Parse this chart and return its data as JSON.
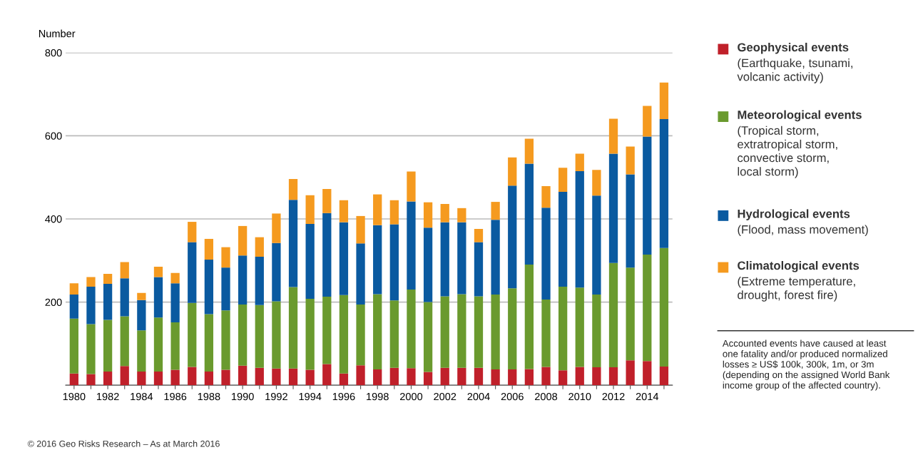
{
  "chart_data": {
    "type": "bar",
    "stacked": true,
    "ylabel": "Number",
    "categories": [
      "1980",
      null,
      "1982",
      null,
      "1984",
      null,
      "1986",
      null,
      "1988",
      null,
      "1990",
      null,
      "1992",
      null,
      "1994",
      null,
      "1996",
      null,
      "1998",
      null,
      "2000",
      null,
      "2002",
      null,
      "2004",
      null,
      "2006",
      null,
      "2008",
      null,
      "2010",
      null,
      "2012",
      null,
      "2014",
      null
    ],
    "series": [
      {
        "name": "Geophysical events",
        "color": "#c0202a",
        "values": [
          28,
          27,
          33,
          46,
          33,
          33,
          37,
          44,
          33,
          37,
          47,
          42,
          40,
          40,
          37,
          51,
          28,
          48,
          38,
          42,
          41,
          32,
          42,
          42,
          42,
          38,
          38,
          39,
          44,
          36,
          44,
          43,
          43,
          60,
          58,
          45
        ]
      },
      {
        "name": "Meteorological events",
        "color": "#6a9a2e",
        "values": [
          132,
          120,
          124,
          120,
          99,
          130,
          114,
          154,
          138,
          143,
          147,
          151,
          162,
          196,
          171,
          162,
          189,
          146,
          181,
          162,
          189,
          168,
          172,
          177,
          172,
          180,
          195,
          251,
          162,
          201,
          191,
          175,
          251,
          223,
          256,
          285
        ]
      },
      {
        "name": "Hydrological events",
        "color": "#0a5aa0",
        "values": [
          58,
          90,
          87,
          91,
          73,
          97,
          94,
          146,
          131,
          103,
          118,
          116,
          140,
          210,
          180,
          201,
          175,
          147,
          166,
          183,
          212,
          179,
          178,
          173,
          130,
          180,
          247,
          243,
          221,
          228,
          280,
          238,
          263,
          224,
          284,
          310
        ]
      },
      {
        "name": "Climatological events",
        "color": "#f59a1f",
        "values": [
          27,
          23,
          24,
          39,
          17,
          25,
          25,
          49,
          50,
          49,
          71,
          47,
          71,
          50,
          69,
          58,
          53,
          66,
          74,
          58,
          72,
          61,
          44,
          34,
          32,
          43,
          68,
          60,
          52,
          58,
          42,
          62,
          84,
          67,
          74,
          88
        ]
      }
    ],
    "ylim": [
      0,
      800
    ],
    "yticks": [
      {
        "value": 0,
        "label": null
      },
      200,
      400,
      600,
      800
    ],
    "grid": "y",
    "legend": "right",
    "annotations": [
      "(Earthquake, tsunami,\nvolcanic activity)",
      "(Tropical storm,\nextratropical storm,\nconvective storm,\nlocal storm)",
      "(Flood, mass movement)",
      "(Extreme temperature,\ndrought, forest fire)",
      "Accounted events have caused at least\none fatality and/or produced normalized\nlosses ≥ US$ 100k, 300k, 1m, or 3m\n(depending on the assigned World Bank\nincome group of the affected country).",
      "© 2016 Geo Risks Research – As at March 2016"
    ]
  }
}
